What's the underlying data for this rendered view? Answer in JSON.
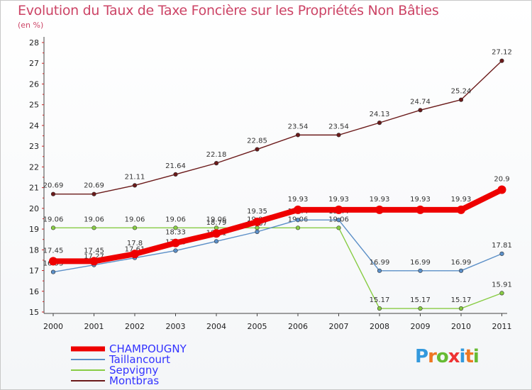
{
  "chart_data": {
    "type": "line",
    "title": "Evolution du Taux de Taxe Foncière sur les Propriétés Non Bâties",
    "ylabel": "(en %)",
    "xlabel": "",
    "categories": [
      "2000",
      "2001",
      "2002",
      "2003",
      "2004",
      "2005",
      "2006",
      "2007",
      "2008",
      "2009",
      "2010",
      "2011"
    ],
    "ylim": [
      15,
      28
    ],
    "yticks": [
      "15",
      "16",
      "17",
      "18",
      "19",
      "20",
      "21",
      "22",
      "23",
      "24",
      "25",
      "26",
      "27",
      "28"
    ],
    "grid": false,
    "legend_position": "bottom-left",
    "series": [
      {
        "name": "Montbras",
        "color": "#6b1a1a",
        "values": [
          20.69,
          20.69,
          21.11,
          21.64,
          22.18,
          22.85,
          23.54,
          23.54,
          24.13,
          24.74,
          25.24,
          27.12
        ]
      },
      {
        "name": "Sepvigny",
        "color": "#88cc44",
        "values": [
          19.06,
          19.06,
          19.06,
          19.06,
          19.06,
          19.06,
          19.06,
          19.06,
          15.17,
          15.17,
          15.17,
          15.91
        ]
      },
      {
        "name": "Taillancourt",
        "color": "#5b8fc7",
        "values": [
          16.93,
          17.27,
          17.61,
          17.96,
          18.41,
          18.87,
          19.44,
          19.44,
          16.99,
          16.99,
          16.99,
          17.81
        ]
      },
      {
        "name": "CHAMPOUGNY",
        "color": "#ee0000",
        "values": [
          17.45,
          17.45,
          17.8,
          18.33,
          18.79,
          19.35,
          19.93,
          19.93,
          19.93,
          19.93,
          19.93,
          20.9
        ]
      }
    ]
  },
  "legend": {
    "items": [
      {
        "name": "CHAMPOUGNY",
        "color": "#ee0000",
        "text_color": "#3333ff"
      },
      {
        "name": "Taillancourt",
        "color": "#5b8fc7",
        "text_color": "#3333ff"
      },
      {
        "name": "Sepvigny",
        "color": "#88cc44",
        "text_color": "#3333ff"
      },
      {
        "name": "Montbras",
        "color": "#6b1a1a",
        "text_color": "#3333ff"
      }
    ]
  },
  "logo": {
    "letters": [
      "P",
      "r",
      "o",
      "x",
      "i",
      "t",
      "i"
    ],
    "colors": [
      "#3399dd",
      "#ee7722",
      "#66bb33",
      "#ee3333",
      "#3399dd",
      "#ee7722",
      "#66bb33"
    ]
  }
}
